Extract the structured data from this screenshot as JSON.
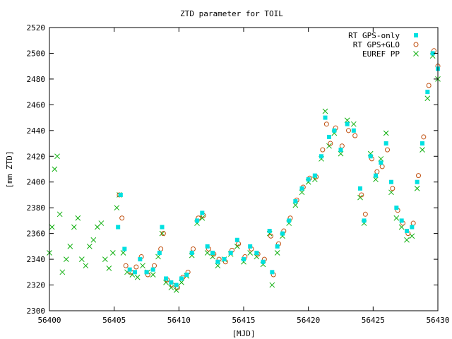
{
  "chart_data": {
    "type": "scatter",
    "title": "ZTD parameter for TOIL",
    "xlabel": "[MJD]",
    "ylabel": "[mm ZTD]",
    "xlim": [
      56400,
      56430
    ],
    "ylim": [
      2300,
      2520
    ],
    "x_ticks": [
      56400,
      56405,
      56410,
      56415,
      56420,
      56425,
      56430
    ],
    "y_ticks": [
      2300,
      2320,
      2340,
      2360,
      2380,
      2400,
      2420,
      2440,
      2460,
      2480,
      2500,
      2520
    ],
    "grid": false,
    "legend_position": "top-right",
    "series": [
      {
        "name": "RT GPS-only",
        "color": "#00e0e0",
        "marker": "square",
        "x": [
          56405.3,
          56405.5,
          56405.8,
          56406.2,
          56406.6,
          56407.0,
          56407.5,
          56408.0,
          56408.5,
          56408.7,
          56409.0,
          56409.4,
          56409.8,
          56410.2,
          56410.6,
          56411.0,
          56411.4,
          56411.8,
          56412.2,
          56412.6,
          56413.0,
          56413.5,
          56414.0,
          56414.5,
          56415.0,
          56415.5,
          56416.0,
          56416.5,
          56417.0,
          56417.2,
          56417.6,
          56418.0,
          56418.5,
          56419.0,
          56419.5,
          56420.0,
          56420.5,
          56421.0,
          56421.3,
          56421.6,
          56422.0,
          56422.5,
          56423.0,
          56423.5,
          56424.0,
          56424.3,
          56424.8,
          56425.2,
          56425.6,
          56426.0,
          56426.4,
          56426.8,
          56427.2,
          56427.6,
          56428.0,
          56428.4,
          56428.8,
          56429.2,
          56429.6,
          56430.0
        ],
        "y": [
          2365,
          2390,
          2348,
          2332,
          2330,
          2340,
          2330,
          2332,
          2345,
          2365,
          2325,
          2322,
          2320,
          2325,
          2328,
          2345,
          2370,
          2376,
          2350,
          2345,
          2338,
          2340,
          2345,
          2355,
          2340,
          2350,
          2345,
          2338,
          2362,
          2330,
          2350,
          2360,
          2370,
          2385,
          2395,
          2402,
          2405,
          2420,
          2450,
          2435,
          2440,
          2425,
          2445,
          2440,
          2395,
          2370,
          2420,
          2405,
          2415,
          2430,
          2400,
          2380,
          2370,
          2362,
          2365,
          2400,
          2430,
          2470,
          2500,
          2488
        ]
      },
      {
        "name": "RT GPS+GLO",
        "color": "#c05010",
        "marker": "circle",
        "x": [
          56405.4,
          56405.6,
          56405.9,
          56406.3,
          56406.7,
          56407.1,
          56407.6,
          56408.1,
          56408.6,
          56408.8,
          56409.1,
          56409.5,
          56409.9,
          56410.3,
          56410.7,
          56411.1,
          56411.5,
          56411.9,
          56412.3,
          56412.7,
          56413.1,
          56413.6,
          56414.1,
          56414.6,
          56415.1,
          56415.6,
          56416.1,
          56416.6,
          56417.1,
          56417.3,
          56417.7,
          56418.1,
          56418.6,
          56419.1,
          56419.6,
          56420.1,
          56420.6,
          56421.1,
          56421.4,
          56421.7,
          56422.1,
          56422.6,
          56423.1,
          56423.6,
          56424.1,
          56424.4,
          56424.9,
          56425.3,
          56425.7,
          56426.1,
          56426.5,
          56426.9,
          56427.3,
          56427.7,
          56428.1,
          56428.5,
          56428.9,
          56429.3,
          56429.7,
          56430.0
        ],
        "y": [
          2390,
          2372,
          2335,
          2330,
          2334,
          2342,
          2328,
          2335,
          2348,
          2360,
          2324,
          2320,
          2318,
          2326,
          2330,
          2348,
          2372,
          2374,
          2348,
          2344,
          2340,
          2338,
          2347,
          2352,
          2342,
          2348,
          2344,
          2340,
          2358,
          2328,
          2352,
          2362,
          2372,
          2386,
          2396,
          2403,
          2404,
          2425,
          2445,
          2430,
          2442,
          2428,
          2440,
          2436,
          2390,
          2375,
          2418,
          2408,
          2412,
          2425,
          2395,
          2378,
          2368,
          2360,
          2368,
          2405,
          2435,
          2475,
          2502,
          2490
        ]
      },
      {
        "name": "EUREF PP",
        "color": "#10b010",
        "marker": "cross",
        "x": [
          56400.0,
          56400.2,
          56400.4,
          56400.6,
          56400.8,
          56401.0,
          56401.3,
          56401.6,
          56401.9,
          56402.2,
          56402.5,
          56402.8,
          56403.1,
          56403.4,
          56403.7,
          56404.0,
          56404.3,
          56404.6,
          56404.9,
          56405.2,
          56405.4,
          56405.7,
          56406.0,
          56406.4,
          56406.8,
          56407.2,
          56407.6,
          56408.0,
          56408.4,
          56408.7,
          56409.0,
          56409.4,
          56409.8,
          56410.2,
          56410.6,
          56411.0,
          56411.4,
          56411.8,
          56412.2,
          56412.6,
          56413.0,
          56413.5,
          56414.0,
          56414.5,
          56415.0,
          56415.5,
          56416.0,
          56416.5,
          56417.0,
          56417.2,
          56417.6,
          56418.0,
          56418.5,
          56419.0,
          56419.5,
          56420.0,
          56420.5,
          56421.0,
          56421.3,
          56421.6,
          56422.0,
          56422.5,
          56423.0,
          56423.5,
          56424.0,
          56424.3,
          56424.8,
          56425.2,
          56425.6,
          56426.0,
          56426.4,
          56426.8,
          56427.2,
          56427.6,
          56428.0,
          56428.4,
          56428.8,
          56429.2,
          56429.6,
          56430.0
        ],
        "y": [
          2345,
          2365,
          2410,
          2420,
          2375,
          2330,
          2340,
          2350,
          2365,
          2372,
          2340,
          2335,
          2350,
          2355,
          2365,
          2368,
          2340,
          2333,
          2345,
          2380,
          2390,
          2345,
          2330,
          2328,
          2326,
          2335,
          2330,
          2328,
          2342,
          2360,
          2322,
          2318,
          2316,
          2322,
          2327,
          2343,
          2368,
          2372,
          2345,
          2342,
          2335,
          2340,
          2344,
          2350,
          2338,
          2345,
          2342,
          2336,
          2360,
          2320,
          2345,
          2358,
          2368,
          2382,
          2392,
          2400,
          2402,
          2418,
          2455,
          2428,
          2438,
          2422,
          2448,
          2445,
          2388,
          2368,
          2422,
          2402,
          2418,
          2438,
          2392,
          2372,
          2365,
          2355,
          2358,
          2395,
          2425,
          2465,
          2498,
          2480
        ]
      }
    ]
  }
}
